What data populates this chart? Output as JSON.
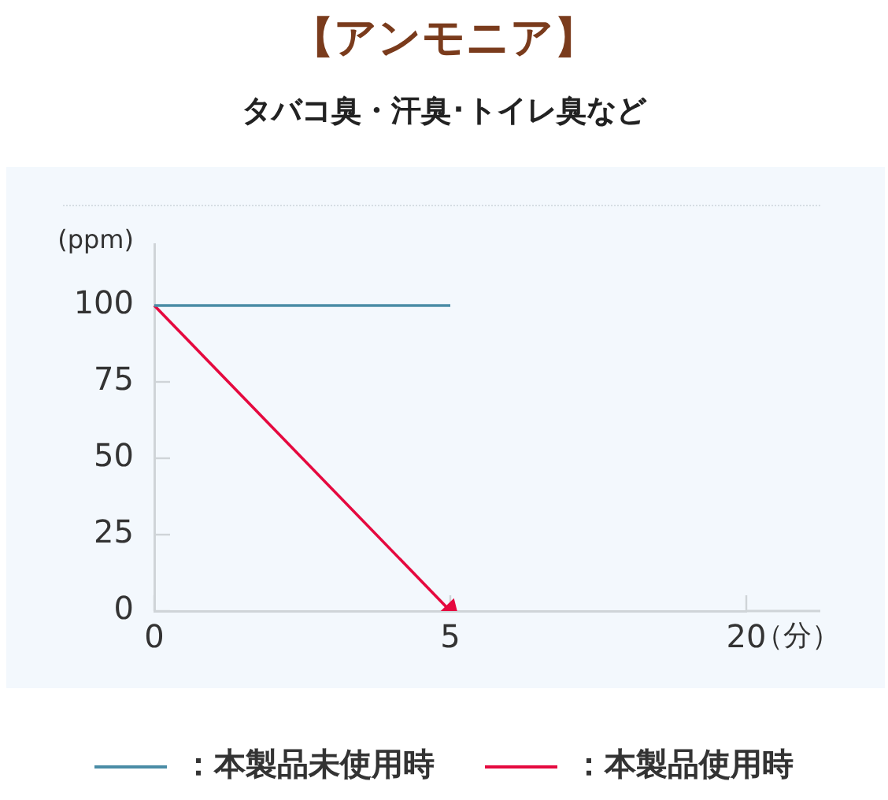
{
  "chart_data": {
    "type": "line",
    "title": "【アンモニア】",
    "subtitle": "タバコ臭・汗臭･トイレ臭など",
    "xlabel": "（分）",
    "ylabel": "(ppm)",
    "categories": [
      "0",
      "5",
      "20"
    ],
    "series": [
      {
        "name": "：本製品未使用時",
        "color": "#4a8ca6",
        "values": [
          100,
          100,
          null
        ]
      },
      {
        "name": "：本製品使用時",
        "color": "#e5093f",
        "values": [
          100,
          0,
          null
        ]
      }
    ],
    "ylim": [
      0,
      120
    ],
    "yticks": [
      0,
      25,
      50,
      75,
      100
    ],
    "legend": "bottom"
  }
}
